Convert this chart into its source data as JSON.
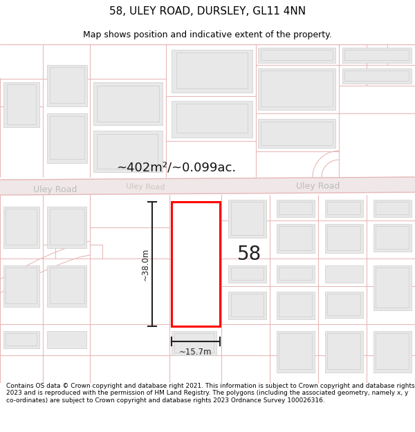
{
  "title": "58, ULEY ROAD, DURSLEY, GL11 4NN",
  "subtitle": "Map shows position and indicative extent of the property.",
  "footer": "Contains OS data © Crown copyright and database right 2021. This information is subject to Crown copyright and database rights 2023 and is reproduced with the permission of HM Land Registry. The polygons (including the associated geometry, namely x, y co-ordinates) are subject to Crown copyright and database rights 2023 Ordnance Survey 100026316.",
  "area_label": "~402m²/~0.099ac.",
  "road_label_left": "Uley Road",
  "road_label_right": "Uley Road",
  "road_label_center": "Uley Road",
  "dim_height": "~38.0m",
  "dim_width": "~15.7m",
  "number_label": "58",
  "bg_color": "#ffffff",
  "map_bg": "#f7f0f0",
  "road_line_color": "#e8b8b8",
  "highlight_color": "#ff0000",
  "highlight_fill": "#ffffff",
  "dim_color": "#222222",
  "road_text_color": "#cccccc",
  "building_fill": "#e8e8e8",
  "building_edge": "#cccccc",
  "title_fontsize": 11,
  "subtitle_fontsize": 9,
  "footer_fontsize": 6.5
}
